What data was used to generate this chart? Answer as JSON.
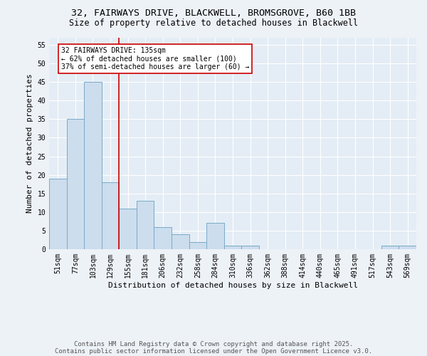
{
  "title_line1": "32, FAIRWAYS DRIVE, BLACKWELL, BROMSGROVE, B60 1BB",
  "title_line2": "Size of property relative to detached houses in Blackwell",
  "xlabel": "Distribution of detached houses by size in Blackwell",
  "ylabel": "Number of detached properties",
  "categories": [
    "51sqm",
    "77sqm",
    "103sqm",
    "129sqm",
    "155sqm",
    "181sqm",
    "206sqm",
    "232sqm",
    "258sqm",
    "284sqm",
    "310sqm",
    "336sqm",
    "362sqm",
    "388sqm",
    "414sqm",
    "440sqm",
    "465sqm",
    "491sqm",
    "517sqm",
    "543sqm",
    "569sqm"
  ],
  "values": [
    19,
    35,
    45,
    18,
    11,
    13,
    6,
    4,
    2,
    7,
    1,
    1,
    0,
    0,
    0,
    0,
    0,
    0,
    0,
    1,
    1
  ],
  "bar_color": "#ccdded",
  "bar_edge_color": "#7aaac8",
  "bar_edge_width": 0.7,
  "ylim": [
    0,
    57
  ],
  "yticks": [
    0,
    5,
    10,
    15,
    20,
    25,
    30,
    35,
    40,
    45,
    50,
    55
  ],
  "red_line_index": 3,
  "red_line_color": "#cc0000",
  "annotation_text": "32 FAIRWAYS DRIVE: 135sqm\n← 62% of detached houses are smaller (100)\n37% of semi-detached houses are larger (60) →",
  "annotation_box_color": "#ffffff",
  "annotation_box_edge": "#cc0000",
  "background_color": "#edf2f7",
  "plot_bg_color": "#e4edf5",
  "grid_color": "#ffffff",
  "footer_line1": "Contains HM Land Registry data © Crown copyright and database right 2025.",
  "footer_line2": "Contains public sector information licensed under the Open Government Licence v3.0.",
  "title_fontsize": 9.5,
  "subtitle_fontsize": 8.5,
  "axis_label_fontsize": 8,
  "tick_fontsize": 7,
  "annotation_fontsize": 7,
  "footer_fontsize": 6.5
}
